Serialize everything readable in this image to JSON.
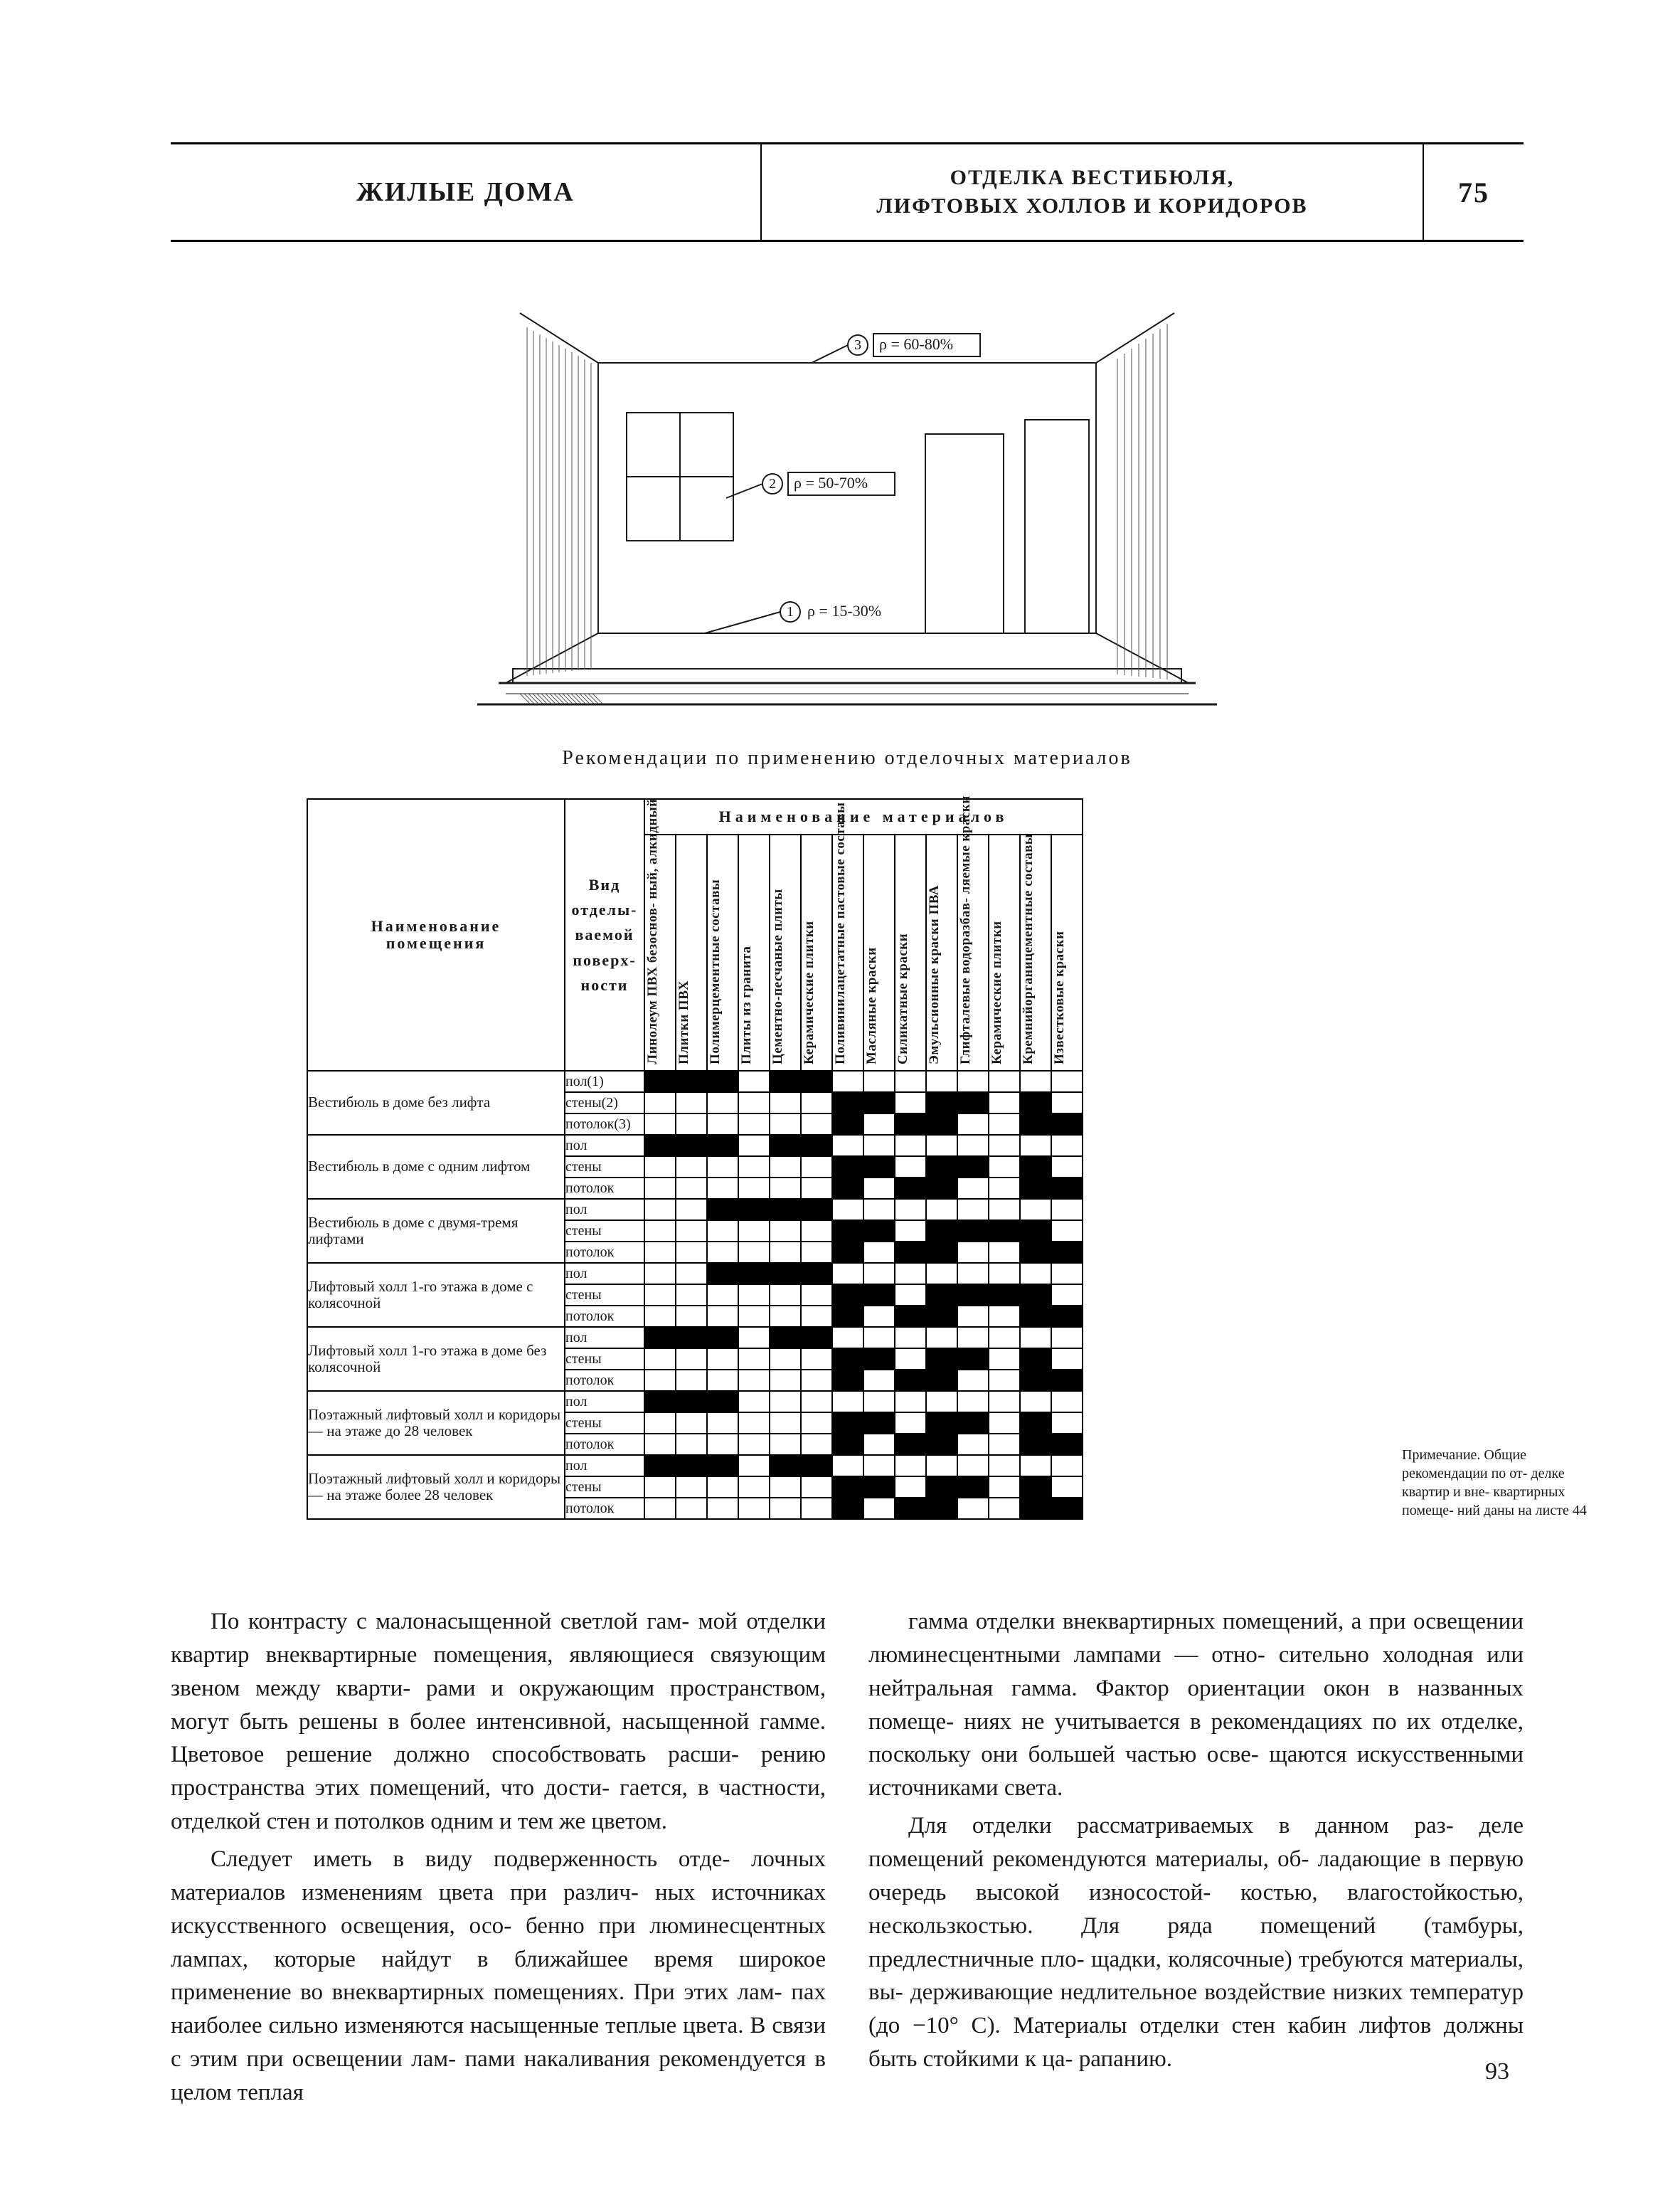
{
  "header": {
    "left": "ЖИЛЫЕ ДОМА",
    "mid_line1": "ОТДЕЛКА ВЕСТИБЮЛЯ,",
    "mid_line2": "ЛИФТОВЫХ ХОЛЛОВ И КОРИДОРОВ",
    "page_box": "75"
  },
  "figure": {
    "label1": "ρ = 15-30%",
    "label2": "ρ = 50-70%",
    "label3": "ρ = 60-80%",
    "circ1": "1",
    "circ2": "2",
    "circ3": "3",
    "caption": "Рекомендации по применению отделочных материалов",
    "stroke": "#1a1a1a",
    "hatch": "#555555"
  },
  "table": {
    "room_hdr": "Наименование помещения",
    "surf_hdr": "Вид отделы- ваемой поверх- ности",
    "mat_grp_hdr": "Наименование   материалов",
    "materials": [
      "Линолеум ПВХ безоснов- ный, алкидный",
      "Плитки ПВХ",
      "Полимерцементные составы",
      "Плиты из гранита",
      "Цементно-песчаные плиты",
      "Керамические плитки",
      "Поливинилацетатные пастовые составы",
      "Масляные краски",
      "Силикатные краски",
      "Эмульсионные краски ПВА",
      "Глифталевые водоразбав- ляемые краски",
      "Керамические плитки",
      "Кремнийорганицементные составы",
      "Известковые краски"
    ],
    "rooms": [
      {
        "name": "Вестибюль в доме без лифта",
        "surfaces": [
          {
            "label": "пол(1)",
            "on": [
              1,
              1,
              1,
              0,
              1,
              1,
              0,
              0,
              0,
              0,
              0,
              0,
              0,
              0
            ]
          },
          {
            "label": "стены(2)",
            "on": [
              0,
              0,
              0,
              0,
              0,
              0,
              1,
              1,
              0,
              1,
              1,
              0,
              1,
              0
            ]
          },
          {
            "label": "потолок(3)",
            "on": [
              0,
              0,
              0,
              0,
              0,
              0,
              1,
              0,
              1,
              1,
              0,
              0,
              1,
              1
            ]
          }
        ]
      },
      {
        "name": "Вестибюль в доме с одним лифтом",
        "surfaces": [
          {
            "label": "пол",
            "on": [
              1,
              1,
              1,
              0,
              1,
              1,
              0,
              0,
              0,
              0,
              0,
              0,
              0,
              0
            ]
          },
          {
            "label": "стены",
            "on": [
              0,
              0,
              0,
              0,
              0,
              0,
              1,
              1,
              0,
              1,
              1,
              0,
              1,
              0
            ]
          },
          {
            "label": "потолок",
            "on": [
              0,
              0,
              0,
              0,
              0,
              0,
              1,
              0,
              1,
              1,
              0,
              0,
              1,
              1
            ]
          }
        ]
      },
      {
        "name": "Вестибюль в доме с двумя-тремя лифтами",
        "surfaces": [
          {
            "label": "пол",
            "on": [
              0,
              0,
              1,
              1,
              1,
              1,
              0,
              0,
              0,
              0,
              0,
              0,
              0,
              0
            ]
          },
          {
            "label": "стены",
            "on": [
              0,
              0,
              0,
              0,
              0,
              0,
              1,
              1,
              0,
              1,
              1,
              1,
              1,
              0
            ]
          },
          {
            "label": "потолок",
            "on": [
              0,
              0,
              0,
              0,
              0,
              0,
              1,
              0,
              1,
              1,
              0,
              0,
              1,
              1
            ]
          }
        ]
      },
      {
        "name": "Лифтовый холл 1-го этажа в доме с колясочной",
        "surfaces": [
          {
            "label": "пол",
            "on": [
              0,
              0,
              1,
              1,
              1,
              1,
              0,
              0,
              0,
              0,
              0,
              0,
              0,
              0
            ]
          },
          {
            "label": "стены",
            "on": [
              0,
              0,
              0,
              0,
              0,
              0,
              1,
              1,
              0,
              1,
              1,
              1,
              1,
              0
            ]
          },
          {
            "label": "потолок",
            "on": [
              0,
              0,
              0,
              0,
              0,
              0,
              1,
              0,
              1,
              1,
              0,
              0,
              1,
              1
            ]
          }
        ]
      },
      {
        "name": "Лифтовый холл 1-го этажа в доме без колясочной",
        "surfaces": [
          {
            "label": "пол",
            "on": [
              1,
              1,
              1,
              0,
              1,
              1,
              0,
              0,
              0,
              0,
              0,
              0,
              0,
              0
            ]
          },
          {
            "label": "стены",
            "on": [
              0,
              0,
              0,
              0,
              0,
              0,
              1,
              1,
              0,
              1,
              1,
              0,
              1,
              0
            ]
          },
          {
            "label": "потолок",
            "on": [
              0,
              0,
              0,
              0,
              0,
              0,
              1,
              0,
              1,
              1,
              0,
              0,
              1,
              1
            ]
          }
        ]
      },
      {
        "name": "Поэтажный лифтовый холл и коридоры — на этаже до 28 человек",
        "surfaces": [
          {
            "label": "пол",
            "on": [
              1,
              1,
              1,
              0,
              0,
              0,
              0,
              0,
              0,
              0,
              0,
              0,
              0,
              0
            ]
          },
          {
            "label": "стены",
            "on": [
              0,
              0,
              0,
              0,
              0,
              0,
              1,
              1,
              0,
              1,
              1,
              0,
              1,
              0
            ]
          },
          {
            "label": "потолок",
            "on": [
              0,
              0,
              0,
              0,
              0,
              0,
              1,
              0,
              1,
              1,
              0,
              0,
              1,
              1
            ]
          }
        ]
      },
      {
        "name": "Поэтажный лифтовый холл и коридоры — на этаже более 28 человек",
        "surfaces": [
          {
            "label": "пол",
            "on": [
              1,
              1,
              1,
              0,
              1,
              1,
              0,
              0,
              0,
              0,
              0,
              0,
              0,
              0
            ]
          },
          {
            "label": "стены",
            "on": [
              0,
              0,
              0,
              0,
              0,
              0,
              1,
              1,
              0,
              1,
              1,
              0,
              1,
              0
            ]
          },
          {
            "label": "потолок",
            "on": [
              0,
              0,
              0,
              0,
              0,
              0,
              1,
              0,
              1,
              1,
              0,
              0,
              1,
              1
            ]
          }
        ]
      }
    ],
    "note": "Примечание. Общие рекомендации по от- делке квартир и вне- квартирных помеще- ний даны на листе 44"
  },
  "copy": {
    "p1": "По контрасту с малонасыщенной светлой гам- мой отделки квартир внеквартирные помещения, являющиеся связующим звеном между кварти- рами и окружающим пространством, могут быть решены в более интенсивной, насыщенной гамме. Цветовое решение должно способствовать расши- рению пространства этих помещений, что дости- гается, в частности, отделкой стен и потолков одним и тем же цветом.",
    "p2": "Следует иметь в виду подверженность отде- лочных материалов изменениям цвета при различ- ных источниках искусственного освещения, осо- бенно при люминесцентных лампах, которые найдут в ближайшее время широкое применение во внеквартирных помещениях. При этих лам- пах наиболее сильно изменяются насыщенные теплые цвета. В связи с этим при освещении лам- пами накаливания рекомендуется в целом теплая",
    "p3": "гамма отделки внеквартирных помещений, а при освещении люминесцентными лампами — отно- сительно холодная или нейтральная гамма. Фактор ориентации окон в названных помеще- ниях не учитывается в рекомендациях по их отделке, поскольку они большей частью осве- щаются искусственными источниками света.",
    "p4": "Для отделки рассматриваемых в данном раз- деле помещений рекомендуются материалы, об- ладающие в первую очередь высокой износостой- костью, влагостойкостью, нескользкостью. Для ряда помещений (тамбуры, предлестничные пло- щадки, колясочные) требуются материалы, вы- держивающие недлительное воздействие низких температур (до −10° С). Материалы отделки стен кабин лифтов должны быть стойкими к ца- рапанию."
  },
  "folio": "93"
}
